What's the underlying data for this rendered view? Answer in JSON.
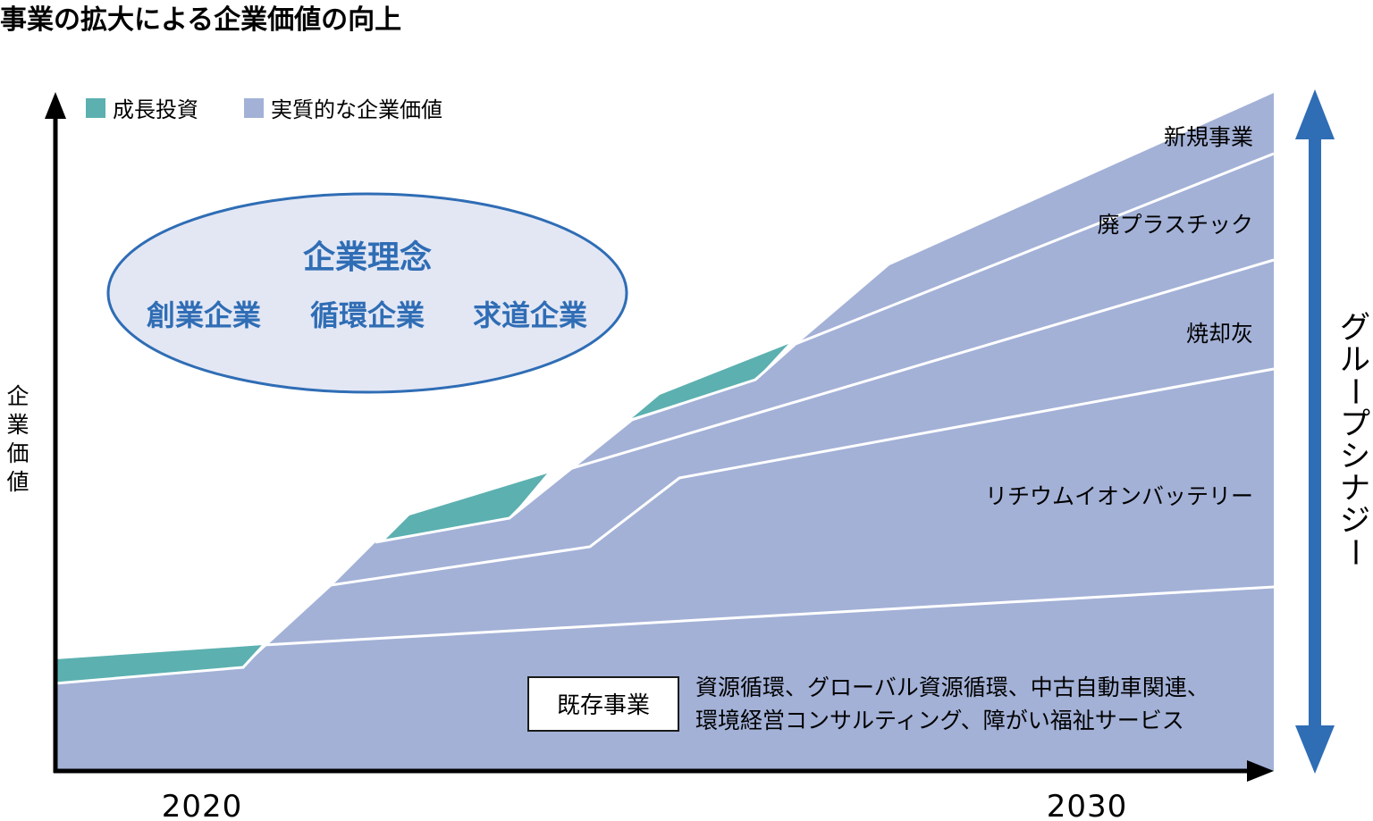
{
  "title": "事業の拡大による企業価値の向上",
  "legend": [
    {
      "label": "成長投資",
      "color": "#5cb0b0"
    },
    {
      "label": "実質的な企業価値",
      "color": "#a3b1d7"
    }
  ],
  "y_axis_label": [
    "企",
    "業",
    "価",
    "値"
  ],
  "x_axis": {
    "start": "2020",
    "end": "2030"
  },
  "philosophy": {
    "title": "企業理念",
    "items": [
      "創業企業",
      "循環企業",
      "求道企業"
    ]
  },
  "layers": [
    "新規事業",
    "廃プラスチック",
    "焼却灰",
    "リチウムイオンバッテリー"
  ],
  "existing": {
    "box_label": "既存事業",
    "desc_line1": "資源循環、グローバル資源循環、中古自動車関連、",
    "desc_line2": "環境経営コンサルティング、障がい福祉サービス"
  },
  "synergy": [
    "グ",
    "ル",
    "ー",
    "プ",
    "シ",
    "ナ",
    "ジ",
    "ー"
  ],
  "colors": {
    "investment": "#5cb0b0",
    "value": "#a3b1d7",
    "accent": "#2f6db5",
    "ellipse_fill": "#e3e7f4"
  }
}
